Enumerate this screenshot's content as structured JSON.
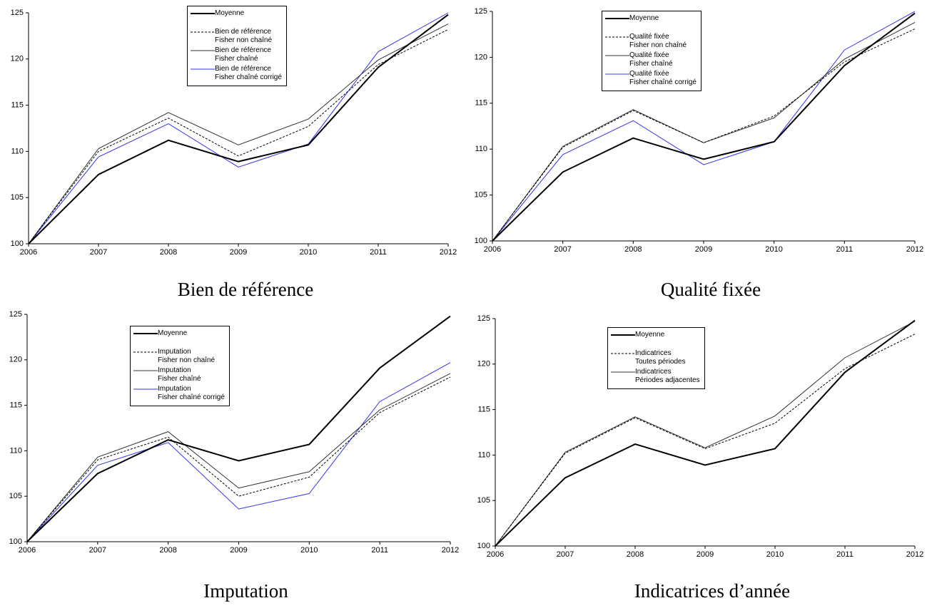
{
  "chart_data": [
    {
      "type": "line",
      "title": "Bien de référence",
      "legend": "top",
      "x": [
        2006,
        2007,
        2008,
        2009,
        2010,
        2011,
        2012
      ],
      "xlim": [
        2006,
        2012
      ],
      "xticks": [
        2006,
        2007,
        2008,
        2009,
        2010,
        2011,
        2012
      ],
      "ylim": [
        100,
        125
      ],
      "yticks": [
        100,
        105,
        110,
        115,
        120,
        125
      ],
      "grid": false,
      "series": [
        {
          "name": "Moyenne",
          "color": "#000000",
          "width": 2,
          "style": "solid",
          "values": [
            100,
            107.5,
            111.2,
            108.9,
            110.7,
            119.1,
            124.8
          ]
        },
        {
          "name": "Bien de référence\nFisher non chaîné",
          "color": "#000000",
          "width": 1,
          "style": "dashed",
          "values": [
            100,
            110,
            113.6,
            109.5,
            112.7,
            119.4,
            123.2
          ]
        },
        {
          "name": "Bien de référence\nFisher chaîné",
          "color": "#333333",
          "width": 1,
          "style": "solid",
          "values": [
            100,
            110.3,
            114.2,
            110.7,
            113.5,
            119.9,
            123.8
          ]
        },
        {
          "name": "Bien de référence\nFisher chaîné corrigé",
          "color": "#3333ee",
          "width": 1,
          "style": "solid",
          "values": [
            100,
            109.4,
            113,
            108.3,
            110.8,
            120.8,
            125
          ]
        }
      ]
    },
    {
      "type": "line",
      "title": "Qualité fixée",
      "legend": "top",
      "x": [
        2006,
        2007,
        2008,
        2009,
        2010,
        2011,
        2012
      ],
      "xlim": [
        2006,
        2012
      ],
      "xticks": [
        2006,
        2007,
        2008,
        2009,
        2010,
        2011,
        2012
      ],
      "ylim": [
        100,
        125
      ],
      "yticks": [
        100,
        105,
        110,
        115,
        120,
        125
      ],
      "grid": false,
      "series": [
        {
          "name": "Moyenne",
          "color": "#000000",
          "width": 2,
          "style": "solid",
          "values": [
            100,
            107.5,
            111.2,
            108.9,
            110.8,
            119.1,
            124.8
          ]
        },
        {
          "name": "Qualité fixée\nFisher non chaîné",
          "color": "#000000",
          "width": 1,
          "style": "dashed",
          "values": [
            100,
            110.2,
            114.2,
            110.7,
            113.6,
            119.5,
            123.1
          ]
        },
        {
          "name": "Qualité fixée\nFisher chaîné",
          "color": "#333333",
          "width": 1,
          "style": "solid",
          "values": [
            100,
            110.3,
            114.3,
            110.7,
            113.4,
            119.8,
            123.8
          ]
        },
        {
          "name": "Qualité fixée\nFisher chaîné corrigé",
          "color": "#3333ee",
          "width": 1,
          "style": "solid",
          "values": [
            100,
            109.4,
            113.1,
            108.3,
            110.8,
            120.8,
            125
          ]
        }
      ]
    },
    {
      "type": "line",
      "title": "Imputation",
      "legend": "top",
      "x": [
        2006,
        2007,
        2008,
        2009,
        2010,
        2011,
        2012
      ],
      "xlim": [
        2006,
        2012
      ],
      "xticks": [
        2006,
        2007,
        2008,
        2009,
        2010,
        2011,
        2012
      ],
      "ylim": [
        100,
        125
      ],
      "yticks": [
        100,
        105,
        110,
        115,
        120,
        125
      ],
      "grid": false,
      "series": [
        {
          "name": "Moyenne",
          "color": "#000000",
          "width": 2,
          "style": "solid",
          "values": [
            100,
            107.5,
            111.2,
            108.9,
            110.7,
            119.1,
            124.8
          ]
        },
        {
          "name": "Imputation\nFisher non chaîné",
          "color": "#000000",
          "width": 1,
          "style": "dashed",
          "values": [
            100,
            109,
            111.5,
            105,
            107.1,
            114.2,
            118.1
          ]
        },
        {
          "name": "Imputation\nFisher chaîné",
          "color": "#333333",
          "width": 1,
          "style": "solid",
          "values": [
            100,
            109.3,
            112.1,
            105.9,
            107.7,
            114.5,
            118.5
          ]
        },
        {
          "name": "Imputation\nFisher chaîné corrigé",
          "color": "#3333ee",
          "width": 1,
          "style": "solid",
          "values": [
            100,
            108.4,
            110.9,
            103.6,
            105.3,
            115.4,
            119.7
          ]
        }
      ]
    },
    {
      "type": "line",
      "title": "Indicatrices d’année",
      "legend": "top",
      "x": [
        2006,
        2007,
        2008,
        2009,
        2010,
        2011,
        2012
      ],
      "xlim": [
        2006,
        2012
      ],
      "xticks": [
        2006,
        2007,
        2008,
        2009,
        2010,
        2011,
        2012
      ],
      "ylim": [
        100,
        125
      ],
      "yticks": [
        100,
        105,
        110,
        115,
        120,
        125
      ],
      "grid": false,
      "series": [
        {
          "name": "Moyenne",
          "color": "#000000",
          "width": 2,
          "style": "solid",
          "values": [
            100,
            107.5,
            111.2,
            108.9,
            110.7,
            119.1,
            124.8
          ]
        },
        {
          "name": "Indicatrices\nToutes périodes",
          "color": "#000000",
          "width": 1,
          "style": "dashed",
          "values": [
            100,
            110.2,
            114.1,
            110.7,
            113.5,
            119.5,
            123.3
          ]
        },
        {
          "name": "Indicatrices\nPériodes adjacentes",
          "color": "#333333",
          "width": 1,
          "style": "solid",
          "values": [
            100,
            110.3,
            114.2,
            110.8,
            114.3,
            120.7,
            124.7
          ]
        }
      ]
    }
  ]
}
